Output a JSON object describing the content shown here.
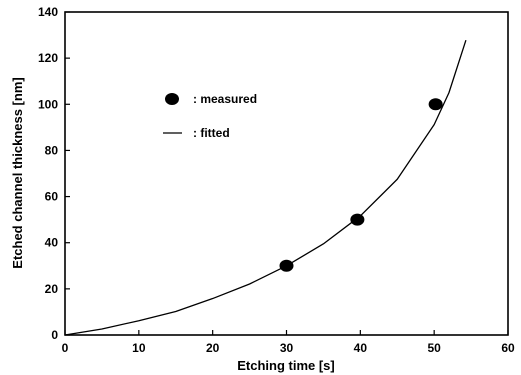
{
  "chart_data": {
    "type": "scatter",
    "title": "",
    "xlabel": "Etching time [s]",
    "ylabel": "Etched channel thickness [nm]",
    "xlim": [
      0,
      60
    ],
    "ylim": [
      0,
      140
    ],
    "xticks": [
      0,
      10,
      20,
      30,
      40,
      50,
      60
    ],
    "yticks": [
      0,
      20,
      40,
      60,
      80,
      100,
      120,
      140
    ],
    "grid": false,
    "legend_position": "upper-left",
    "series": [
      {
        "name": ": measured",
        "kind": "scatter",
        "marker": "filled-ellipse",
        "color": "#000000",
        "x": [
          30,
          39.6,
          50.2
        ],
        "y": [
          30,
          50,
          100
        ]
      },
      {
        "name": ": fitted",
        "kind": "line",
        "color": "#000000",
        "x": [
          0,
          5,
          10,
          15,
          20,
          25,
          30,
          35,
          40,
          45,
          50,
          52,
          54.3
        ],
        "y": [
          0,
          2.6,
          6.2,
          10.2,
          15.8,
          22.1,
          30.0,
          39.5,
          51.6,
          67.5,
          91.2,
          105.0,
          127.8
        ]
      }
    ]
  }
}
